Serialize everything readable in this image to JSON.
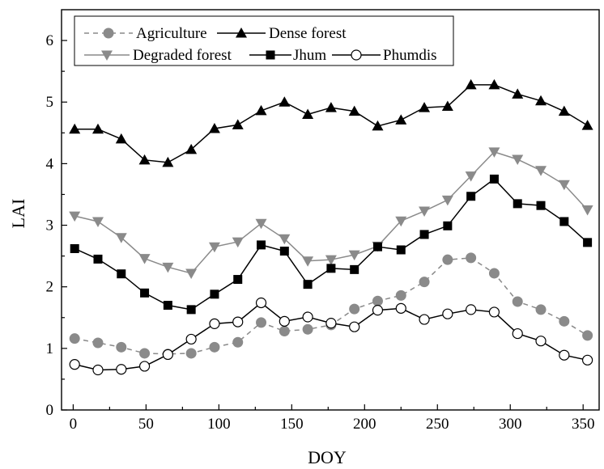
{
  "chart_data": {
    "type": "line",
    "xlabel": "DOY",
    "ylabel": "LAI",
    "xlim": [
      -8,
      361
    ],
    "ylim": [
      0,
      6.5
    ],
    "x_ticks": [
      "0",
      "50",
      "100",
      "150",
      "200",
      "250",
      "300",
      "350"
    ],
    "y_ticks": [
      "0",
      "1",
      "2",
      "3",
      "4",
      "5",
      "6"
    ],
    "grid": false,
    "legend_position": "top-left",
    "x": [
      1,
      17,
      33,
      49,
      65,
      81,
      97,
      113,
      129,
      145,
      161,
      177,
      193,
      209,
      225,
      241,
      257,
      273,
      289,
      305,
      321,
      337,
      353
    ],
    "series": [
      {
        "name": "Agriculture",
        "color": "#8a8a8a",
        "marker": "circle-filled",
        "line": "dashed",
        "values": [
          1.16,
          1.09,
          1.02,
          0.92,
          0.91,
          0.92,
          1.02,
          1.1,
          1.42,
          1.28,
          1.31,
          1.38,
          1.64,
          1.77,
          1.86,
          2.08,
          2.44,
          2.47,
          2.22,
          1.76,
          1.63,
          1.44,
          1.21
        ]
      },
      {
        "name": "Dense forest",
        "color": "#000000",
        "marker": "triangle-up",
        "line": "solid",
        "values": [
          4.56,
          4.56,
          4.4,
          4.06,
          4.02,
          4.23,
          4.57,
          4.63,
          4.86,
          5.0,
          4.8,
          4.91,
          4.85,
          4.61,
          4.71,
          4.91,
          4.93,
          5.28,
          5.28,
          5.13,
          5.02,
          4.85,
          4.62
        ]
      },
      {
        "name": "Degraded forest",
        "color": "#8a8a8a",
        "marker": "triangle-down",
        "line": "solid",
        "values": [
          3.15,
          3.06,
          2.8,
          2.46,
          2.32,
          2.22,
          2.65,
          2.73,
          3.03,
          2.78,
          2.42,
          2.44,
          2.52,
          2.66,
          3.07,
          3.23,
          3.41,
          3.8,
          4.19,
          4.07,
          3.89,
          3.66,
          3.25
        ]
      },
      {
        "name": "Jhum",
        "color": "#000000",
        "marker": "square-filled",
        "line": "solid",
        "values": [
          2.62,
          2.45,
          2.21,
          1.9,
          1.7,
          1.63,
          1.88,
          2.12,
          2.68,
          2.58,
          2.04,
          2.3,
          2.28,
          2.65,
          2.6,
          2.85,
          2.99,
          3.47,
          3.75,
          3.35,
          3.32,
          3.06,
          2.72
        ]
      },
      {
        "name": "Phumdis",
        "color": "#000000",
        "marker": "circle-open",
        "line": "solid",
        "values": [
          0.74,
          0.65,
          0.66,
          0.71,
          0.9,
          1.15,
          1.4,
          1.43,
          1.74,
          1.44,
          1.51,
          1.41,
          1.35,
          1.62,
          1.65,
          1.47,
          1.56,
          1.63,
          1.59,
          1.24,
          1.12,
          0.89,
          0.81
        ]
      }
    ]
  }
}
